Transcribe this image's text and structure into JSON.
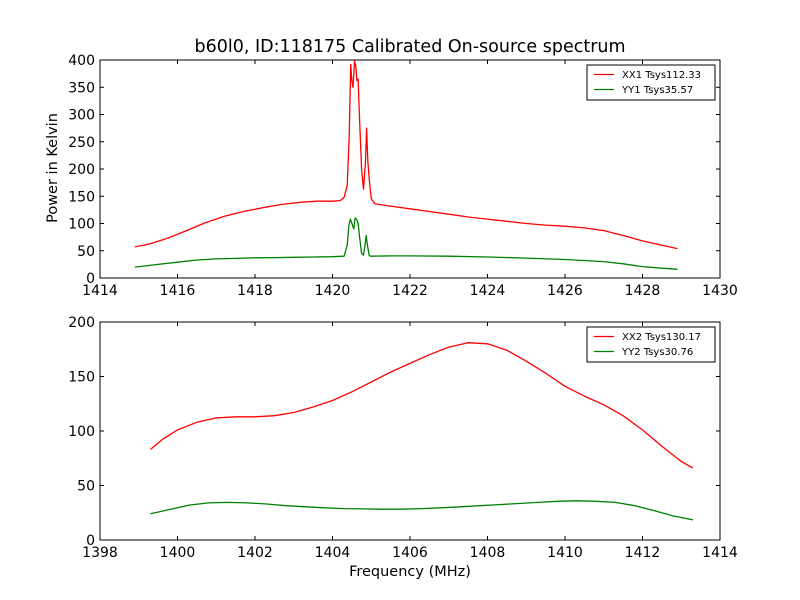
{
  "chart_data": [
    {
      "type": "line",
      "title": "b60l0, ID:118175 Calibrated On-source spectrum",
      "xlabel": "",
      "ylabel": "Power in Kelvin",
      "xlim": [
        1414,
        1430
      ],
      "ylim": [
        0,
        400
      ],
      "xticks": [
        1414,
        1416,
        1418,
        1420,
        1422,
        1424,
        1426,
        1428,
        1430
      ],
      "yticks": [
        0,
        50,
        100,
        150,
        200,
        250,
        300,
        350,
        400
      ],
      "grid": false,
      "legend_position": "top-right",
      "series": [
        {
          "name": "XX1 Tsys112.33",
          "color": "#ff0000",
          "points": [
            [
              1414.9,
              57
            ],
            [
              1415.3,
              63
            ],
            [
              1415.7,
              72
            ],
            [
              1416.2,
              86
            ],
            [
              1416.7,
              101
            ],
            [
              1417.2,
              113
            ],
            [
              1417.7,
              122
            ],
            [
              1418.2,
              129
            ],
            [
              1418.7,
              135
            ],
            [
              1419.2,
              139
            ],
            [
              1419.6,
              141
            ],
            [
              1420.0,
              141
            ],
            [
              1420.2,
              142
            ],
            [
              1420.3,
              148
            ],
            [
              1420.38,
              170
            ],
            [
              1420.43,
              260
            ],
            [
              1420.47,
              392
            ],
            [
              1420.5,
              360
            ],
            [
              1420.53,
              350
            ],
            [
              1420.57,
              398
            ],
            [
              1420.6,
              390
            ],
            [
              1420.63,
              362
            ],
            [
              1420.66,
              365
            ],
            [
              1420.7,
              290
            ],
            [
              1420.75,
              200
            ],
            [
              1420.8,
              163
            ],
            [
              1420.85,
              210
            ],
            [
              1420.88,
              275
            ],
            [
              1420.91,
              215
            ],
            [
              1420.95,
              180
            ],
            [
              1421.0,
              145
            ],
            [
              1421.1,
              136
            ],
            [
              1421.5,
              132
            ],
            [
              1422.0,
              127
            ],
            [
              1422.5,
              122
            ],
            [
              1423.0,
              117
            ],
            [
              1423.5,
              112
            ],
            [
              1424.0,
              108
            ],
            [
              1424.5,
              104
            ],
            [
              1425.0,
              100
            ],
            [
              1425.5,
              97
            ],
            [
              1426.0,
              95
            ],
            [
              1426.5,
              92
            ],
            [
              1427.0,
              87
            ],
            [
              1427.5,
              78
            ],
            [
              1428.0,
              68
            ],
            [
              1428.5,
              60
            ],
            [
              1428.9,
              54
            ]
          ]
        },
        {
          "name": "YY1 Tsys35.57",
          "color": "#008000",
          "points": [
            [
              1414.9,
              20
            ],
            [
              1415.5,
              25
            ],
            [
              1416.0,
              29
            ],
            [
              1416.5,
              33
            ],
            [
              1417.0,
              35
            ],
            [
              1417.5,
              36
            ],
            [
              1418.0,
              37
            ],
            [
              1418.5,
              37.5
            ],
            [
              1419.0,
              38
            ],
            [
              1419.5,
              38.5
            ],
            [
              1420.0,
              39
            ],
            [
              1420.3,
              40
            ],
            [
              1420.38,
              60
            ],
            [
              1420.42,
              95
            ],
            [
              1420.46,
              108
            ],
            [
              1420.5,
              100
            ],
            [
              1420.55,
              90
            ],
            [
              1420.58,
              110
            ],
            [
              1420.62,
              108
            ],
            [
              1420.66,
              100
            ],
            [
              1420.7,
              75
            ],
            [
              1420.75,
              45
            ],
            [
              1420.8,
              42
            ],
            [
              1420.84,
              60
            ],
            [
              1420.87,
              78
            ],
            [
              1420.9,
              60
            ],
            [
              1420.95,
              41
            ],
            [
              1421.0,
              40
            ],
            [
              1421.5,
              40.5
            ],
            [
              1422.0,
              40.5
            ],
            [
              1423.0,
              40
            ],
            [
              1424.0,
              38.5
            ],
            [
              1425.0,
              36.5
            ],
            [
              1426.0,
              34
            ],
            [
              1427.0,
              30
            ],
            [
              1427.5,
              26
            ],
            [
              1428.0,
              21
            ],
            [
              1428.5,
              18
            ],
            [
              1428.9,
              16
            ]
          ]
        }
      ]
    },
    {
      "type": "line",
      "title": "",
      "xlabel": "Frequency (MHz)",
      "ylabel": "",
      "xlim": [
        1398,
        1414
      ],
      "ylim": [
        0,
        200
      ],
      "xticks": [
        1398,
        1400,
        1402,
        1404,
        1406,
        1408,
        1410,
        1412,
        1414
      ],
      "yticks": [
        0,
        50,
        100,
        150,
        200
      ],
      "grid": false,
      "legend_position": "top-right",
      "series": [
        {
          "name": "XX2 Tsys130.17",
          "color": "#ff0000",
          "points": [
            [
              1399.3,
              83
            ],
            [
              1399.6,
              92
            ],
            [
              1400.0,
              101
            ],
            [
              1400.5,
              108
            ],
            [
              1401.0,
              112
            ],
            [
              1401.5,
              113
            ],
            [
              1402.0,
              113
            ],
            [
              1402.5,
              114
            ],
            [
              1403.0,
              117
            ],
            [
              1403.5,
              122
            ],
            [
              1404.0,
              128
            ],
            [
              1404.5,
              136
            ],
            [
              1405.0,
              145
            ],
            [
              1405.5,
              154
            ],
            [
              1406.0,
              162
            ],
            [
              1406.5,
              170
            ],
            [
              1407.0,
              177
            ],
            [
              1407.5,
              181
            ],
            [
              1408.0,
              180
            ],
            [
              1408.5,
              174
            ],
            [
              1409.0,
              164
            ],
            [
              1409.5,
              153
            ],
            [
              1410.0,
              141
            ],
            [
              1410.5,
              132
            ],
            [
              1411.0,
              124
            ],
            [
              1411.5,
              114
            ],
            [
              1412.0,
              101
            ],
            [
              1412.5,
              86
            ],
            [
              1413.0,
              72
            ],
            [
              1413.3,
              66
            ]
          ]
        },
        {
          "name": "YY2 Tsys30.76",
          "color": "#008000",
          "points": [
            [
              1399.3,
              24
            ],
            [
              1399.8,
              28
            ],
            [
              1400.3,
              32
            ],
            [
              1400.8,
              34
            ],
            [
              1401.3,
              34.5
            ],
            [
              1401.8,
              34
            ],
            [
              1402.3,
              33
            ],
            [
              1402.8,
              31.5
            ],
            [
              1403.3,
              30.5
            ],
            [
              1403.8,
              29.5
            ],
            [
              1404.3,
              28.8
            ],
            [
              1404.8,
              28.5
            ],
            [
              1405.3,
              28.3
            ],
            [
              1405.8,
              28.3
            ],
            [
              1406.3,
              28.8
            ],
            [
              1406.8,
              29.5
            ],
            [
              1407.3,
              30.5
            ],
            [
              1407.8,
              31.5
            ],
            [
              1408.3,
              32.5
            ],
            [
              1408.8,
              33.5
            ],
            [
              1409.3,
              34.5
            ],
            [
              1409.8,
              35.5
            ],
            [
              1410.3,
              36
            ],
            [
              1410.8,
              35.5
            ],
            [
              1411.3,
              34.5
            ],
            [
              1411.8,
              31.5
            ],
            [
              1412.3,
              27
            ],
            [
              1412.8,
              22
            ],
            [
              1413.3,
              18.5
            ]
          ]
        }
      ]
    }
  ]
}
